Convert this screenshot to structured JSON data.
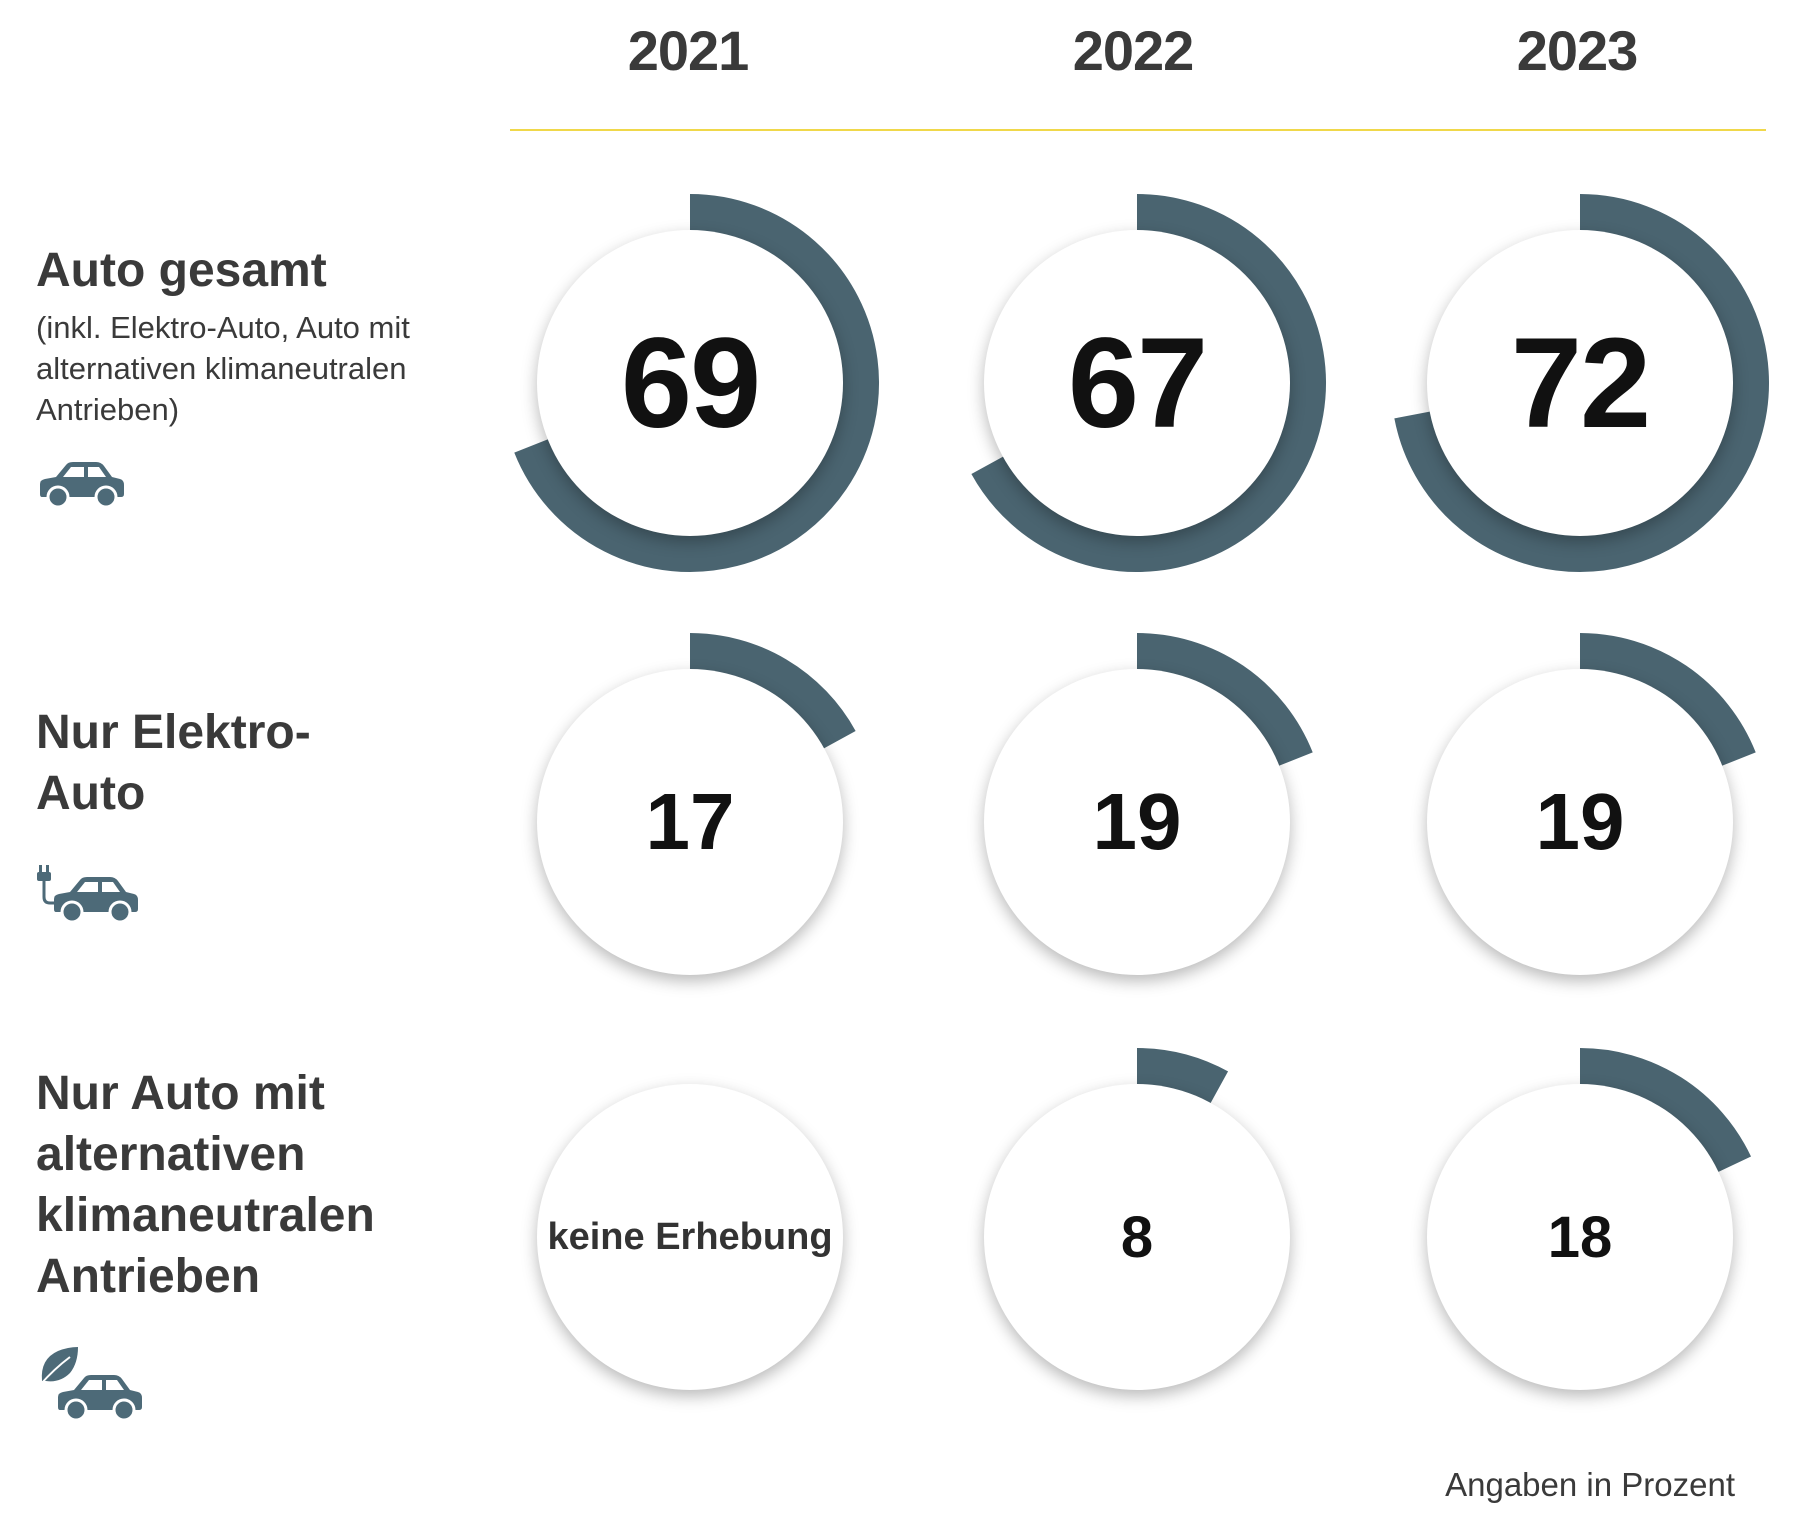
{
  "years": [
    "2021",
    "2022",
    "2023"
  ],
  "rows": [
    {
      "title": "Auto gesamt",
      "subtitle": "(inkl. Elektro-Auto, Auto mit alternativen klimaneutralen Antrieben)",
      "icon": "car-icon"
    },
    {
      "title": "Nur Elektro-Auto",
      "subtitle": "",
      "icon": "electric-car-icon"
    },
    {
      "title": "Nur Auto mit alternativen klimaneutralen Antrieben",
      "subtitle": "",
      "icon": "leaf-car-icon"
    }
  ],
  "cells": [
    [
      {
        "label": "69"
      },
      {
        "label": "67"
      },
      {
        "label": "72"
      }
    ],
    [
      {
        "label": "17"
      },
      {
        "label": "19"
      },
      {
        "label": "19"
      }
    ],
    [
      {
        "label": "keine Erhebung"
      },
      {
        "label": "8"
      },
      {
        "label": "18"
      }
    ]
  ],
  "footnote": "Angaben in Prozent",
  "colors": {
    "arc": "#4a6470",
    "rule": "#f0d84a",
    "text": "#3a3a3a",
    "icon": "#4d6a78"
  },
  "chart_data": {
    "type": "radial-progress",
    "unit": "Prozent",
    "categories": [
      "2021",
      "2022",
      "2023"
    ],
    "series": [
      {
        "name": "Auto gesamt",
        "values": [
          69,
          67,
          72
        ]
      },
      {
        "name": "Nur Elektro-Auto",
        "values": [
          17,
          19,
          19
        ]
      },
      {
        "name": "Nur Auto mit alternativen klimaneutralen Antrieben",
        "values": [
          null,
          8,
          18
        ]
      }
    ],
    "ylim": [
      0,
      100
    ]
  }
}
